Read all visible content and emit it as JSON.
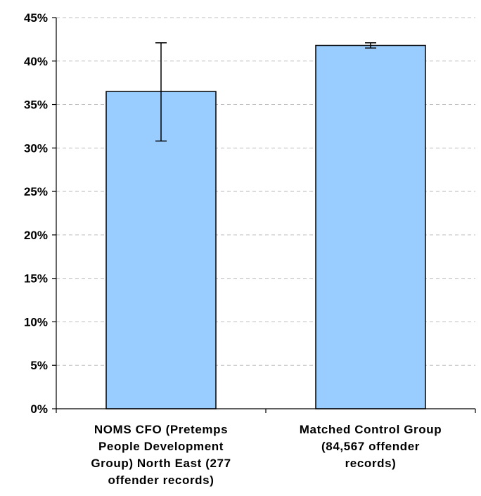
{
  "chart_data": {
    "type": "bar",
    "title": "",
    "xlabel": "",
    "ylabel": "",
    "ylim": [
      0,
      45
    ],
    "y_unit": "%",
    "y_ticks": [
      0,
      5,
      10,
      15,
      20,
      25,
      30,
      35,
      40,
      45
    ],
    "y_tick_labels": [
      "0%",
      "5%",
      "10%",
      "15%",
      "20%",
      "25%",
      "30%",
      "35%",
      "40%",
      "45%"
    ],
    "grid": true,
    "grid_style": "dashed",
    "categories": [
      "NOMS CFO (Pretemps People Development Group) North East (277 offender records)",
      "Matched Control Group (84,567 offender records)"
    ],
    "category_label_lines": [
      [
        "NOMS CFO (Pretemps",
        "People Development",
        "Group) North East (277",
        "offender records)"
      ],
      [
        "Matched Control Group",
        "(84,567 offender",
        "records)"
      ]
    ],
    "values": [
      36.5,
      41.8
    ],
    "error_bars": [
      {
        "low": 30.8,
        "high": 42.1
      },
      {
        "low": 41.5,
        "high": 42.1
      }
    ],
    "colors": {
      "bar_fill": "#99ccff",
      "bar_stroke": "#000000",
      "grid": "#bfbfbf",
      "axis": "#000000"
    }
  }
}
